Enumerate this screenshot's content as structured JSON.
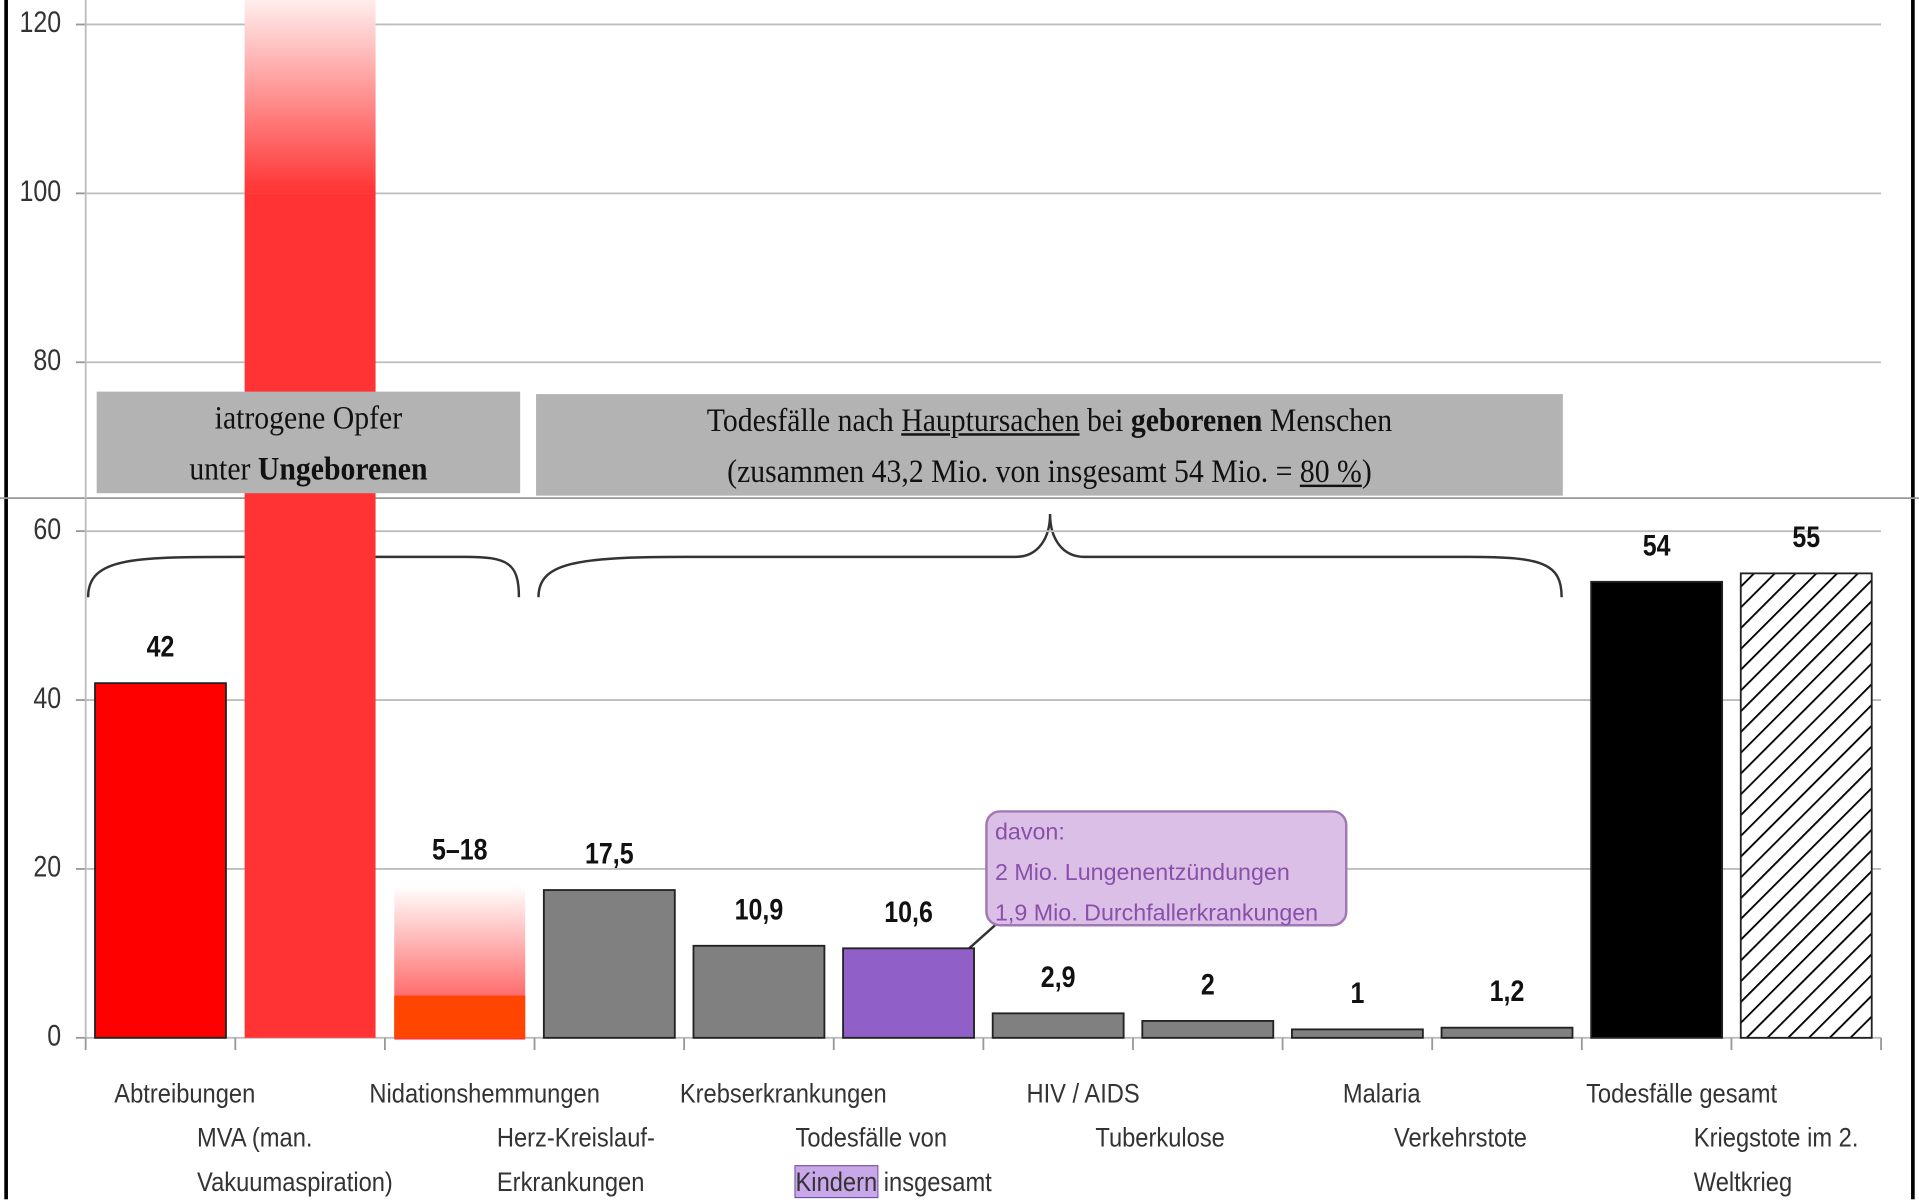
{
  "chart_data": {
    "type": "bar",
    "categories": [
      "Abtreibungen",
      "MVA (man. Vakuumaspiration)",
      "Nidationshemmungen",
      "Herz-Kreislauf-Erkrankungen",
      "Krebserkrankungen",
      "Todesfälle von Kindern insgesamt",
      "HIV / AIDS",
      "Tuberkulose",
      "Malaria",
      "Verkehrstote",
      "Todesfälle gesamt",
      "Kriegstote im 2. Weltkrieg"
    ],
    "values": [
      42,
      100,
      5,
      17.5,
      10.9,
      10.6,
      2.9,
      2,
      1,
      1.2,
      54,
      55
    ],
    "range_high": [
      null,
      125,
      18,
      null,
      null,
      null,
      null,
      null,
      null,
      null,
      null,
      null
    ],
    "value_labels": [
      "42",
      null,
      "5–18",
      "17,5",
      "10,9",
      "10,6",
      "2,9",
      "2",
      "1",
      "1,2",
      "54",
      "55"
    ],
    "colors": [
      "#ff0000",
      "#ff3333",
      "#ff4500",
      "#808080",
      "#808080",
      "#9060c8",
      "#808080",
      "#808080",
      "#808080",
      "#808080",
      "#000000",
      "#ffffff"
    ],
    "hatched": [
      11
    ],
    "ylim": [
      0,
      120
    ],
    "yticks": [
      0,
      20,
      40,
      60,
      80,
      100,
      120
    ],
    "grid": true,
    "annotations": [
      {
        "lines": [
          [
            {
              "text": "iatrogene Opfer"
            }
          ],
          [
            {
              "text": "unter "
            },
            {
              "text": "Ungeborenen",
              "bold": true
            }
          ]
        ]
      },
      {
        "lines": [
          [
            {
              "text": "Todesfälle nach "
            },
            {
              "text": "Hauptursachen",
              "underline": true
            },
            {
              "text": " bei "
            },
            {
              "text": "geborenen",
              "bold": true
            },
            {
              "text": " Menschen"
            }
          ],
          [
            {
              "text": "(zusammen 43,2 Mio. von insgesamt 54 Mio. = "
            },
            {
              "text": "80 %",
              "underline": true
            },
            {
              "text": ")"
            }
          ]
        ]
      }
    ],
    "callout": [
      "davon:",
      "2 Mio. Lungenentzündungen",
      "1,9 Mio. Durchfallerkrankungen"
    ],
    "category_highlight": {
      "index": 5,
      "word": 2
    }
  }
}
